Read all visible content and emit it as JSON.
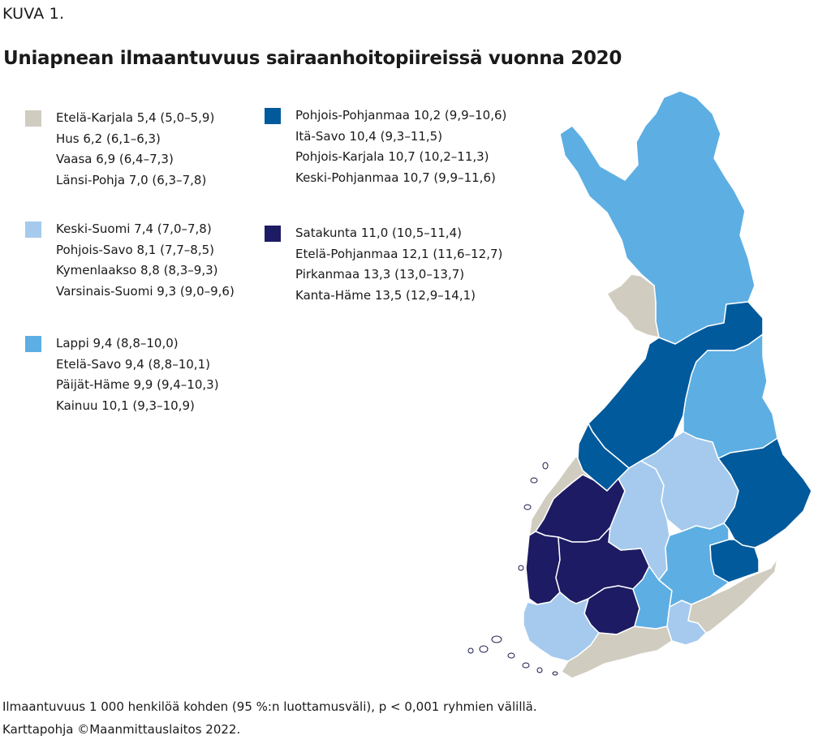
{
  "figure_label": "KUVA 1.",
  "title": "Uniapnean ilmaantuvuus sairaanhoitopiireissä vuonna 2020",
  "colors": {
    "class1": "#d1ccc0",
    "class2": "#a5caed",
    "class3": "#5daee3",
    "class4": "#005a9c",
    "class5": "#1d1b63",
    "border": "#ffffff",
    "outline": "#1a1a4a"
  },
  "legend": [
    {
      "swatch_color": "#d1ccc0",
      "entries": [
        "Etelä-Karjala 5,4 (5,0–5,9)",
        "Hus 6,2 (6,1–6,3)",
        "Vaasa 6,9 (6,4–7,3)",
        "Länsi-Pohja 7,0 (6,3–7,8)"
      ]
    },
    {
      "swatch_color": "#a5caed",
      "entries": [
        "Keski-Suomi 7,4 (7,0–7,8)",
        "Pohjois-Savo 8,1 (7,7–8,5)",
        "Kymenlaakso 8,8 (8,3–9,3)",
        "Varsinais-Suomi 9,3 (9,0–9,6)"
      ]
    },
    {
      "swatch_color": "#5daee3",
      "entries": [
        "Lappi 9,4 (8,8–10,0)",
        "Etelä-Savo 9,4 (8,8–10,1)",
        "Päijät-Häme 9,9 (9,4–10,3)",
        "Kainuu 10,1 (9,3–10,9)"
      ]
    },
    {
      "swatch_color": "#005a9c",
      "entries": [
        "Pohjois-Pohjanmaa 10,2 (9,9–10,6)",
        "Itä-Savo 10,4 (9,3–11,5)",
        "Pohjois-Karjala 10,7 (10,2–11,3)",
        "Keski-Pohjanmaa 10,7 (9,9–11,6)"
      ]
    },
    {
      "swatch_color": "#1d1b63",
      "entries": [
        "Satakunta 11,0 (10,5–11,4)",
        "Etelä-Pohjanmaa 12,1 (11,6–12,7)",
        "Pirkanmaa 13,3 (13,0–13,7)",
        "Kanta-Häme 13,5 (12,9–14,1)"
      ]
    }
  ],
  "footnote_1": "Ilmaantuvuus 1 000 henkilöä kohden (95 %:n luottamusväli), p < 0,001 ryhmien välillä.",
  "footnote_2": "Karttapohja ©Maanmittauslaitos 2022."
}
